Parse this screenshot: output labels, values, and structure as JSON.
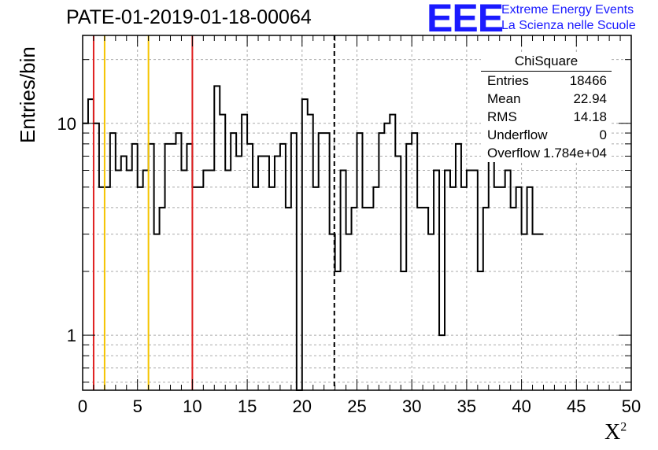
{
  "title": "PATE-01-2019-01-18-00064",
  "logo": {
    "text": "EEE",
    "line1": "Extreme Energy Events",
    "line2": "La Scienza nelle Scuole"
  },
  "colors": {
    "frame": "#000000",
    "grid": "#aaaaaa",
    "red_line": "#e02020",
    "yellow_line": "#f5c400",
    "logo": "#1a1aff"
  },
  "stats_box": {
    "title": "ChiSquare",
    "rows": [
      {
        "label": "Entries",
        "value": "18466"
      },
      {
        "label": "Mean",
        "value": "22.94"
      },
      {
        "label": "RMS",
        "value": "14.18"
      },
      {
        "label": "Underflow",
        "value": "0"
      },
      {
        "label": "Overflow",
        "value": "1.784e+04"
      }
    ]
  },
  "chart_data": {
    "type": "histogram",
    "ylabel": "Entries/bin",
    "xlabel": "X",
    "xlabel_superscript": "2",
    "xlim": [
      0,
      50
    ],
    "ylim": [
      0.55,
      26
    ],
    "yscale": "log",
    "grid": true,
    "bin_width": 0.5,
    "x_ticks": [
      "0",
      "5",
      "10",
      "15",
      "20",
      "25",
      "30",
      "35",
      "40",
      "45",
      "50"
    ],
    "y_ticks": [
      "1",
      "10"
    ],
    "values": [
      10,
      13,
      10,
      5,
      5,
      9,
      6,
      7,
      6,
      8,
      5,
      6,
      8,
      3,
      4,
      8,
      8,
      9,
      6,
      8,
      5,
      5,
      6,
      6,
      15,
      11,
      6,
      9,
      7,
      11,
      8,
      5,
      7,
      7,
      5,
      7,
      8,
      4,
      9,
      0,
      13,
      11,
      5,
      9,
      9,
      3,
      2,
      6,
      3,
      4,
      9,
      4,
      4,
      5,
      9,
      10,
      11,
      7,
      2,
      8,
      9,
      4,
      4,
      3,
      6,
      1,
      6,
      5,
      8,
      5,
      6,
      6,
      2,
      4,
      9,
      5,
      5,
      6,
      4,
      5,
      3,
      5,
      3,
      3
    ],
    "reference_lines": [
      {
        "x": 1,
        "color": "red"
      },
      {
        "x": 2,
        "color": "yellow"
      },
      {
        "x": 6,
        "color": "yellow"
      },
      {
        "x": 10,
        "color": "red"
      }
    ],
    "mean_line": 22.94
  }
}
